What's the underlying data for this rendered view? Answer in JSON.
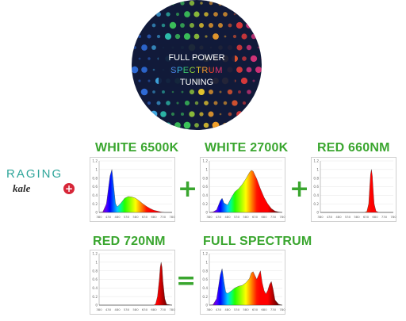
{
  "badge": {
    "line1": "FULL POWER",
    "line2_letters": [
      "S",
      "P",
      "E",
      "C",
      "T",
      "R",
      "U",
      "M"
    ],
    "line2_colors": [
      "#4a7de8",
      "#38b6e0",
      "#3ac46d",
      "#8ccf3a",
      "#f0d02c",
      "#f39a2b",
      "#e8402f",
      "#e5346f"
    ],
    "line3": "TUNING",
    "background": "#111a3a"
  },
  "brand": {
    "word1": "RAGING",
    "word2": "kale",
    "mark": "+"
  },
  "operators": {
    "plus1": "+",
    "plus2": "+",
    "equals": "="
  },
  "headings": {
    "white6500": "WHITE 6500K",
    "white2700": "WHITE 2700K",
    "red660": "RED 660NM",
    "red720": "RED 720NM",
    "full": "FULL SPECTRUM"
  },
  "chart_data": [
    {
      "type": "area",
      "title": "WHITE 6500K",
      "y_ticks": [
        "1.2",
        "1",
        "0.8",
        "0.6",
        "0.4",
        "0.2",
        "0"
      ],
      "x_ticks": [
        "380",
        "430",
        "480",
        "530",
        "580",
        "630",
        "680",
        "730",
        "780"
      ],
      "xlim": [
        380,
        780
      ],
      "ylim": [
        0,
        1.2
      ],
      "x": [
        380,
        400,
        420,
        440,
        450,
        460,
        470,
        480,
        500,
        520,
        540,
        560,
        580,
        600,
        620,
        640,
        660,
        680,
        700,
        720,
        740,
        760,
        780
      ],
      "values": [
        0,
        0.01,
        0.2,
        0.85,
        1.0,
        0.6,
        0.2,
        0.13,
        0.22,
        0.33,
        0.37,
        0.36,
        0.33,
        0.27,
        0.2,
        0.14,
        0.09,
        0.05,
        0.03,
        0.01,
        0,
        0,
        0
      ]
    },
    {
      "type": "area",
      "title": "WHITE 2700K",
      "y_ticks": [
        "1.2",
        "1",
        "0.8",
        "0.6",
        "0.4",
        "0.2",
        "0"
      ],
      "x_ticks": [
        "380",
        "430",
        "480",
        "530",
        "580",
        "630",
        "680",
        "730",
        "780"
      ],
      "xlim": [
        380,
        780
      ],
      "ylim": [
        0,
        1.2
      ],
      "x": [
        380,
        400,
        420,
        440,
        450,
        460,
        480,
        500,
        520,
        540,
        560,
        580,
        600,
        610,
        620,
        640,
        660,
        680,
        700,
        720,
        740,
        760,
        780
      ],
      "values": [
        0,
        0.01,
        0.06,
        0.27,
        0.33,
        0.22,
        0.17,
        0.34,
        0.48,
        0.55,
        0.65,
        0.78,
        0.93,
        0.98,
        0.96,
        0.78,
        0.55,
        0.35,
        0.2,
        0.09,
        0.03,
        0.01,
        0
      ]
    },
    {
      "type": "area",
      "title": "RED 660NM",
      "y_ticks": [
        "1.2",
        "1",
        "0.8",
        "0.6",
        "0.4",
        "0.2",
        "0"
      ],
      "x_ticks": [
        "380",
        "430",
        "480",
        "530",
        "580",
        "630",
        "680",
        "730",
        "780"
      ],
      "xlim": [
        380,
        780
      ],
      "ylim": [
        0,
        1.2
      ],
      "x": [
        380,
        620,
        635,
        645,
        650,
        655,
        660,
        665,
        670,
        675,
        685,
        700,
        780
      ],
      "values": [
        0,
        0,
        0.02,
        0.2,
        0.55,
        0.88,
        1.0,
        0.85,
        0.5,
        0.2,
        0.03,
        0,
        0
      ]
    },
    {
      "type": "area",
      "title": "RED 720NM",
      "y_ticks": [
        "1.2",
        "1",
        "0.8",
        "0.6",
        "0.4",
        "0.2",
        "0"
      ],
      "x_ticks": [
        "380",
        "430",
        "480",
        "530",
        "580",
        "630",
        "680",
        "730",
        "780"
      ],
      "xlim": [
        380,
        780
      ],
      "ylim": [
        0,
        1.2
      ],
      "x": [
        380,
        680,
        690,
        700,
        710,
        715,
        720,
        725,
        730,
        740,
        750,
        780
      ],
      "values": [
        0,
        0,
        0.03,
        0.2,
        0.6,
        0.88,
        1.0,
        0.88,
        0.55,
        0.15,
        0.02,
        0
      ]
    },
    {
      "type": "area",
      "title": "FULL SPECTRUM",
      "y_ticks": [
        "1.2",
        "1",
        "0.8",
        "0.6",
        "0.4",
        "0.2",
        "0"
      ],
      "x_ticks": [
        "380",
        "430",
        "480",
        "530",
        "580",
        "630",
        "680",
        "730",
        "780"
      ],
      "xlim": [
        380,
        780
      ],
      "ylim": [
        0,
        1.2
      ],
      "x": [
        380,
        400,
        420,
        440,
        450,
        460,
        470,
        480,
        500,
        520,
        540,
        560,
        580,
        600,
        610,
        620,
        640,
        650,
        660,
        670,
        680,
        690,
        700,
        710,
        720,
        730,
        740,
        760,
        780
      ],
      "values": [
        0,
        0.01,
        0.15,
        0.7,
        0.85,
        0.55,
        0.3,
        0.27,
        0.33,
        0.4,
        0.44,
        0.46,
        0.52,
        0.62,
        0.75,
        0.78,
        0.6,
        0.7,
        0.8,
        0.52,
        0.34,
        0.26,
        0.34,
        0.48,
        0.55,
        0.36,
        0.12,
        0.02,
        0
      ]
    }
  ]
}
